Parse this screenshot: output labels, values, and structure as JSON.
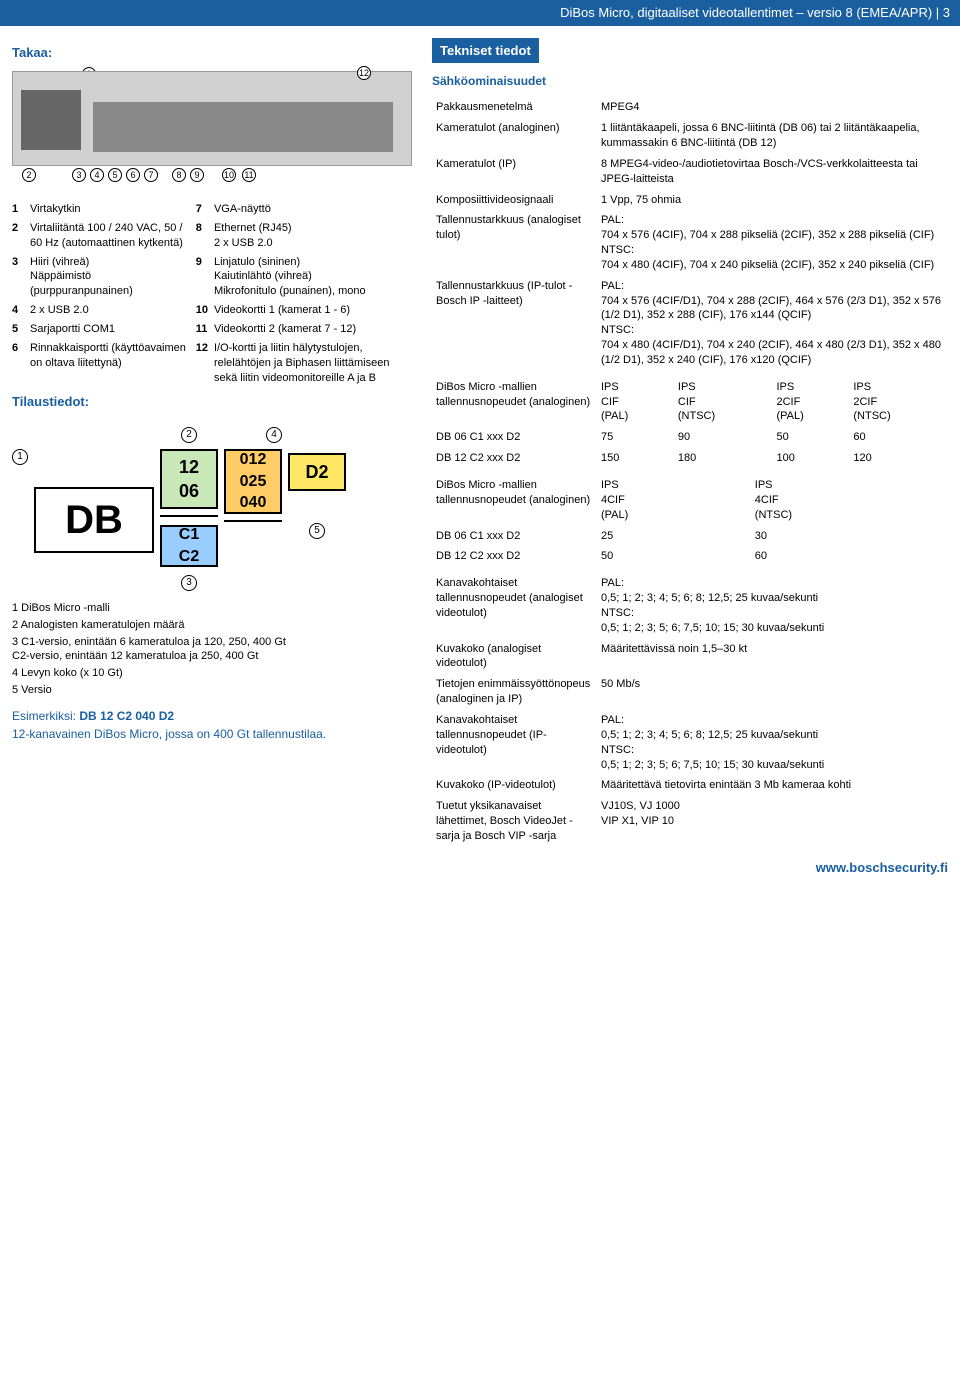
{
  "topbar": "DiBos Micro, digitaaliset videotallentimet – versio 8 (EMEA/APR) | 3",
  "left": {
    "takaa_title": "Takaa:",
    "legend": [
      {
        "n": "1",
        "a": "Virtakytkin",
        "m": "7",
        "b": "VGA-näyttö"
      },
      {
        "n": "2",
        "a": "Virtaliitäntä 100 / 240 VAC, 50 / 60 Hz (automaattinen kytkentä)",
        "m": "8",
        "b": "Ethernet (RJ45)\n2 x USB 2.0"
      },
      {
        "n": "3",
        "a": "Hiiri (vihreä)\nNäppäimistö (purppuranpunainen)",
        "m": "9",
        "b": "Linjatulo (sininen)\nKaiutinlähtö (vihreä)\nMikrofonitulo (punainen), mono"
      },
      {
        "n": "4",
        "a": "2 x USB 2.0",
        "m": "10",
        "b": "Videokortti 1 (kamerat 1 - 6)"
      },
      {
        "n": "5",
        "a": "Sarjaportti COM1",
        "m": "11",
        "b": "Videokortti 2 (kamerat 7 - 12)"
      },
      {
        "n": "6",
        "a": "Rinnakkaisportti (käyttöavaimen on oltava liitettynä)",
        "m": "12",
        "b": "I/O-kortti ja liitin hälytystulojen, relelähtöjen ja Biphasen liittämiseen sekä liitin videomonitoreille A ja B"
      }
    ],
    "tilaus_title": "Tilaustiedot:",
    "diagram": {
      "db": "DB",
      "green": [
        "12",
        "06"
      ],
      "orange": [
        "012",
        "025",
        "040"
      ],
      "yellow": "D2",
      "blue": [
        "C1",
        "C2"
      ],
      "pins": {
        "1": "1",
        "2": "2",
        "3": "3",
        "4": "4",
        "5": "5"
      }
    },
    "legend2": [
      "1  DiBos Micro -malli",
      "2  Analogisten kameratulojen määrä",
      "3  C1-versio, enintään 6 kameratuloa ja 120, 250, 400 Gt\n    C2-versio, enintään 12 kameratuloa ja 250, 400 Gt",
      "4  Levyn koko (x 10 Gt)",
      "5  Versio"
    ],
    "example_label": "Esimerkiksi:",
    "example_code": "DB 12 C2 040 D2",
    "example_desc": "12-kanavainen DiBos Micro, jossa on 400 Gt tallennustilaa."
  },
  "right": {
    "title": "Tekniset tiedot",
    "sub": "Sähköominaisuudet",
    "rows": [
      {
        "k": "Pakkausmenetelmä",
        "v": "MPEG4"
      },
      {
        "k": "Kameratulot (analoginen)",
        "v": "1 liitäntäkaapeli, jossa 6 BNC-liitintä (DB 06) tai 2 liitäntäkaapelia, kummassakin 6 BNC-liitintä (DB 12)"
      },
      {
        "k": "Kameratulot (IP)",
        "v": "8 MPEG4-video-/audiotietovirtaa Bosch-/VCS-verkkolaitteesta tai JPEG-laitteista"
      },
      {
        "k": "Komposiittivideosignaali",
        "v": "1 Vpp, 75 ohmia"
      },
      {
        "k": "Tallennustarkkuus (analogiset tulot)",
        "v": "PAL:\n704 x 576 (4CIF), 704 x 288 pikseliä (2CIF), 352 x 288 pikseliä (CIF)\nNTSC:\n704 x 480 (4CIF), 704 x 240 pikseliä (2CIF), 352 x 240 pikseliä (CIF)"
      },
      {
        "k": "Tallennustarkkuus (IP-tulot - Bosch IP -laitteet)",
        "v": "PAL:\n704 x 576 (4CIF/D1), 704 x 288 (2CIF), 464 x 576 (2/3 D1), 352 x 576 (1/2 D1), 352 x 288 (CIF), 176 x144 (QCIF)\nNTSC:\n704 x 480 (4CIF/D1), 704 x 240 (2CIF), 464 x 480 (2/3 D1), 352 x 480 (1/2 D1), 352 x 240 (CIF), 176 x120 (QCIF)"
      }
    ],
    "ips1_label": "DiBos Micro -mallien tallennusnopeudet (analoginen)",
    "ips1_cols": [
      "IPS\nCIF\n(PAL)",
      "IPS\nCIF\n(NTSC)",
      "IPS\n2CIF\n(PAL)",
      "IPS\n2CIF\n(NTSC)"
    ],
    "ips1_rows": [
      {
        "k": "DB 06 C1 xxx D2",
        "v": [
          "75",
          "90",
          "50",
          "60"
        ]
      },
      {
        "k": "DB 12 C2 xxx D2",
        "v": [
          "150",
          "180",
          "100",
          "120"
        ]
      }
    ],
    "ips2_label": "DiBos Micro -mallien tallennusnopeudet (analoginen)",
    "ips2_cols": [
      "IPS\n4CIF\n(PAL)",
      "IPS\n4CIF\n(NTSC)"
    ],
    "ips2_rows": [
      {
        "k": "DB 06 C1 xxx D2",
        "v": [
          "25",
          "30"
        ]
      },
      {
        "k": "DB 12 C2 xxx D2",
        "v": [
          "50",
          "60"
        ]
      }
    ],
    "rows2": [
      {
        "k": "Kanavakohtaiset tallennusnopeudet (analogiset videotulot)",
        "v": "PAL:\n0,5; 1; 2; 3; 4; 5; 6; 8; 12,5; 25 kuvaa/sekunti\nNTSC:\n0,5; 1; 2; 3; 5; 6; 7,5; 10; 15; 30 kuvaa/sekunti"
      },
      {
        "k": "Kuvakoko (analogiset videotulot)",
        "v": "Määritettävissä noin 1,5–30 kt"
      },
      {
        "k": "Tietojen enimmäissyöttönopeus (analoginen ja IP)",
        "v": "50 Mb/s"
      },
      {
        "k": "Kanavakohtaiset tallennusnopeudet (IP-videotulot)",
        "v": "PAL:\n0,5; 1; 2; 3; 4; 5; 6; 8; 12,5; 25 kuvaa/sekunti\nNTSC:\n0,5; 1; 2; 3; 5; 6; 7,5; 10; 15; 30 kuvaa/sekunti"
      },
      {
        "k": "Kuvakoko (IP-videotulot)",
        "v": "Määritettävä tietovirta enintään 3 Mb kameraa kohti"
      },
      {
        "k": "Tuetut yksikanavaiset lähettimet, Bosch VideoJet -sarja ja Bosch VIP -sarja",
        "v": "VJ10S, VJ 1000\nVIP X1, VIP 10"
      }
    ]
  },
  "footer": "www.boschsecurity.fi"
}
